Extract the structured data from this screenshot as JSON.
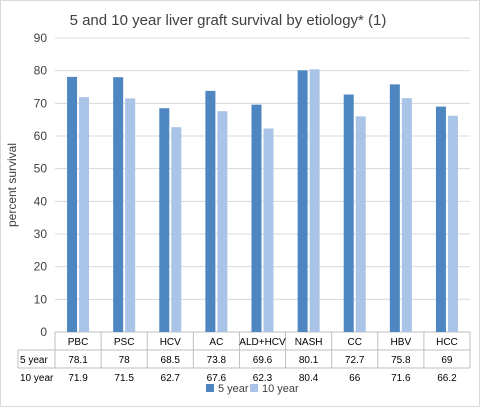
{
  "chart_data": {
    "type": "bar",
    "title": "5 and 10 year liver graft survival by etiology* (1)",
    "xlabel": "",
    "ylabel": "percent survival",
    "ylim": [
      0,
      90
    ],
    "yticks": [
      0,
      10,
      20,
      30,
      40,
      50,
      60,
      70,
      80,
      90
    ],
    "grid": true,
    "legend_position": "bottom",
    "categories": [
      "PBC",
      "PSC",
      "HCV",
      "AC",
      "ALD+HCV",
      "NASH",
      "CC",
      "HBV",
      "HCC"
    ],
    "series": [
      {
        "name": "5 year",
        "color": "#4e86c2",
        "values": [
          78.1,
          78,
          68.5,
          73.8,
          69.6,
          80.1,
          72.7,
          75.8,
          69
        ]
      },
      {
        "name": "10 year",
        "color": "#a9c4e6",
        "values": [
          71.9,
          71.5,
          62.7,
          67.6,
          62.3,
          80.4,
          66,
          71.6,
          66.2
        ]
      }
    ],
    "table_values": {
      "5 year": [
        "78.1",
        "78",
        "68.5",
        "73.8",
        "69.6",
        "80.1",
        "72.7",
        "75.8",
        "69"
      ],
      "10 year": [
        "71.9",
        "71.5",
        "62.7",
        "67.6",
        "62.3",
        "80.4",
        "66",
        "71.6",
        "66.2"
      ]
    }
  }
}
